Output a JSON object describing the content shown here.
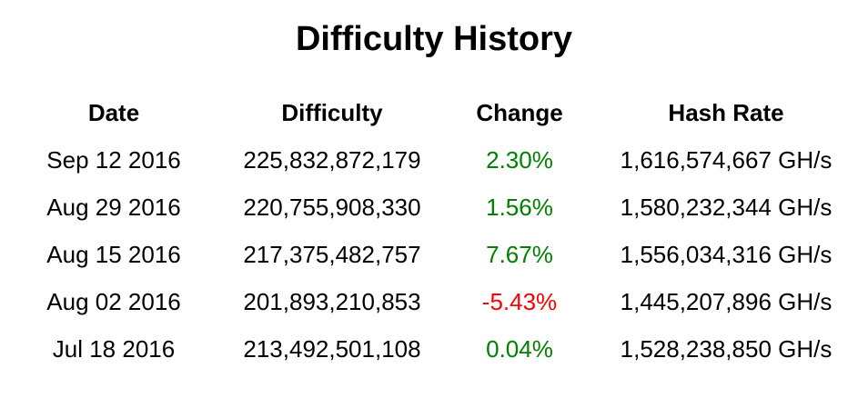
{
  "page": {
    "title": "Difficulty History"
  },
  "colors": {
    "background": "#ffffff",
    "text": "#000000",
    "positive_change": "#008000",
    "negative_change": "#ff0000"
  },
  "table": {
    "headers": {
      "date": "Date",
      "difficulty": "Difficulty",
      "change": "Change",
      "hash_rate": "Hash Rate"
    },
    "rows": [
      {
        "date": "Sep 12 2016",
        "difficulty": "225,832,872,179",
        "change": "2.30%",
        "change_direction": "positive",
        "hash_rate": "1,616,574,667 GH/s"
      },
      {
        "date": "Aug 29 2016",
        "difficulty": "220,755,908,330",
        "change": "1.56%",
        "change_direction": "positive",
        "hash_rate": "1,580,232,344 GH/s"
      },
      {
        "date": "Aug 15 2016",
        "difficulty": "217,375,482,757",
        "change": "7.67%",
        "change_direction": "positive",
        "hash_rate": "1,556,034,316 GH/s"
      },
      {
        "date": "Aug 02 2016",
        "difficulty": "201,893,210,853",
        "change": "-5.43%",
        "change_direction": "negative",
        "hash_rate": "1,445,207,896 GH/s"
      },
      {
        "date": "Jul 18 2016",
        "difficulty": "213,492,501,108",
        "change": "0.04%",
        "change_direction": "positive",
        "hash_rate": "1,528,238,850 GH/s"
      }
    ]
  },
  "chart_data": {
    "type": "table",
    "title": "Difficulty History",
    "columns": [
      "Date",
      "Difficulty",
      "Change",
      "Hash Rate"
    ],
    "rows": [
      [
        "Sep 12 2016",
        "225,832,872,179",
        "2.30%",
        "1,616,574,667 GH/s"
      ],
      [
        "Aug 29 2016",
        "220,755,908,330",
        "1.56%",
        "1,580,232,344 GH/s"
      ],
      [
        "Aug 15 2016",
        "217,375,482,757",
        "7.67%",
        "1,556,034,316 GH/s"
      ],
      [
        "Aug 02 2016",
        "201,893,210,853",
        "-5.43%",
        "1,445,207,896 GH/s"
      ],
      [
        "Jul 18 2016",
        "213,492,501,108",
        "0.04%",
        "1,528,238,850 GH/s"
      ]
    ],
    "notes": {
      "positive_change_color": "#008000",
      "negative_change_color": "#ff0000"
    }
  }
}
